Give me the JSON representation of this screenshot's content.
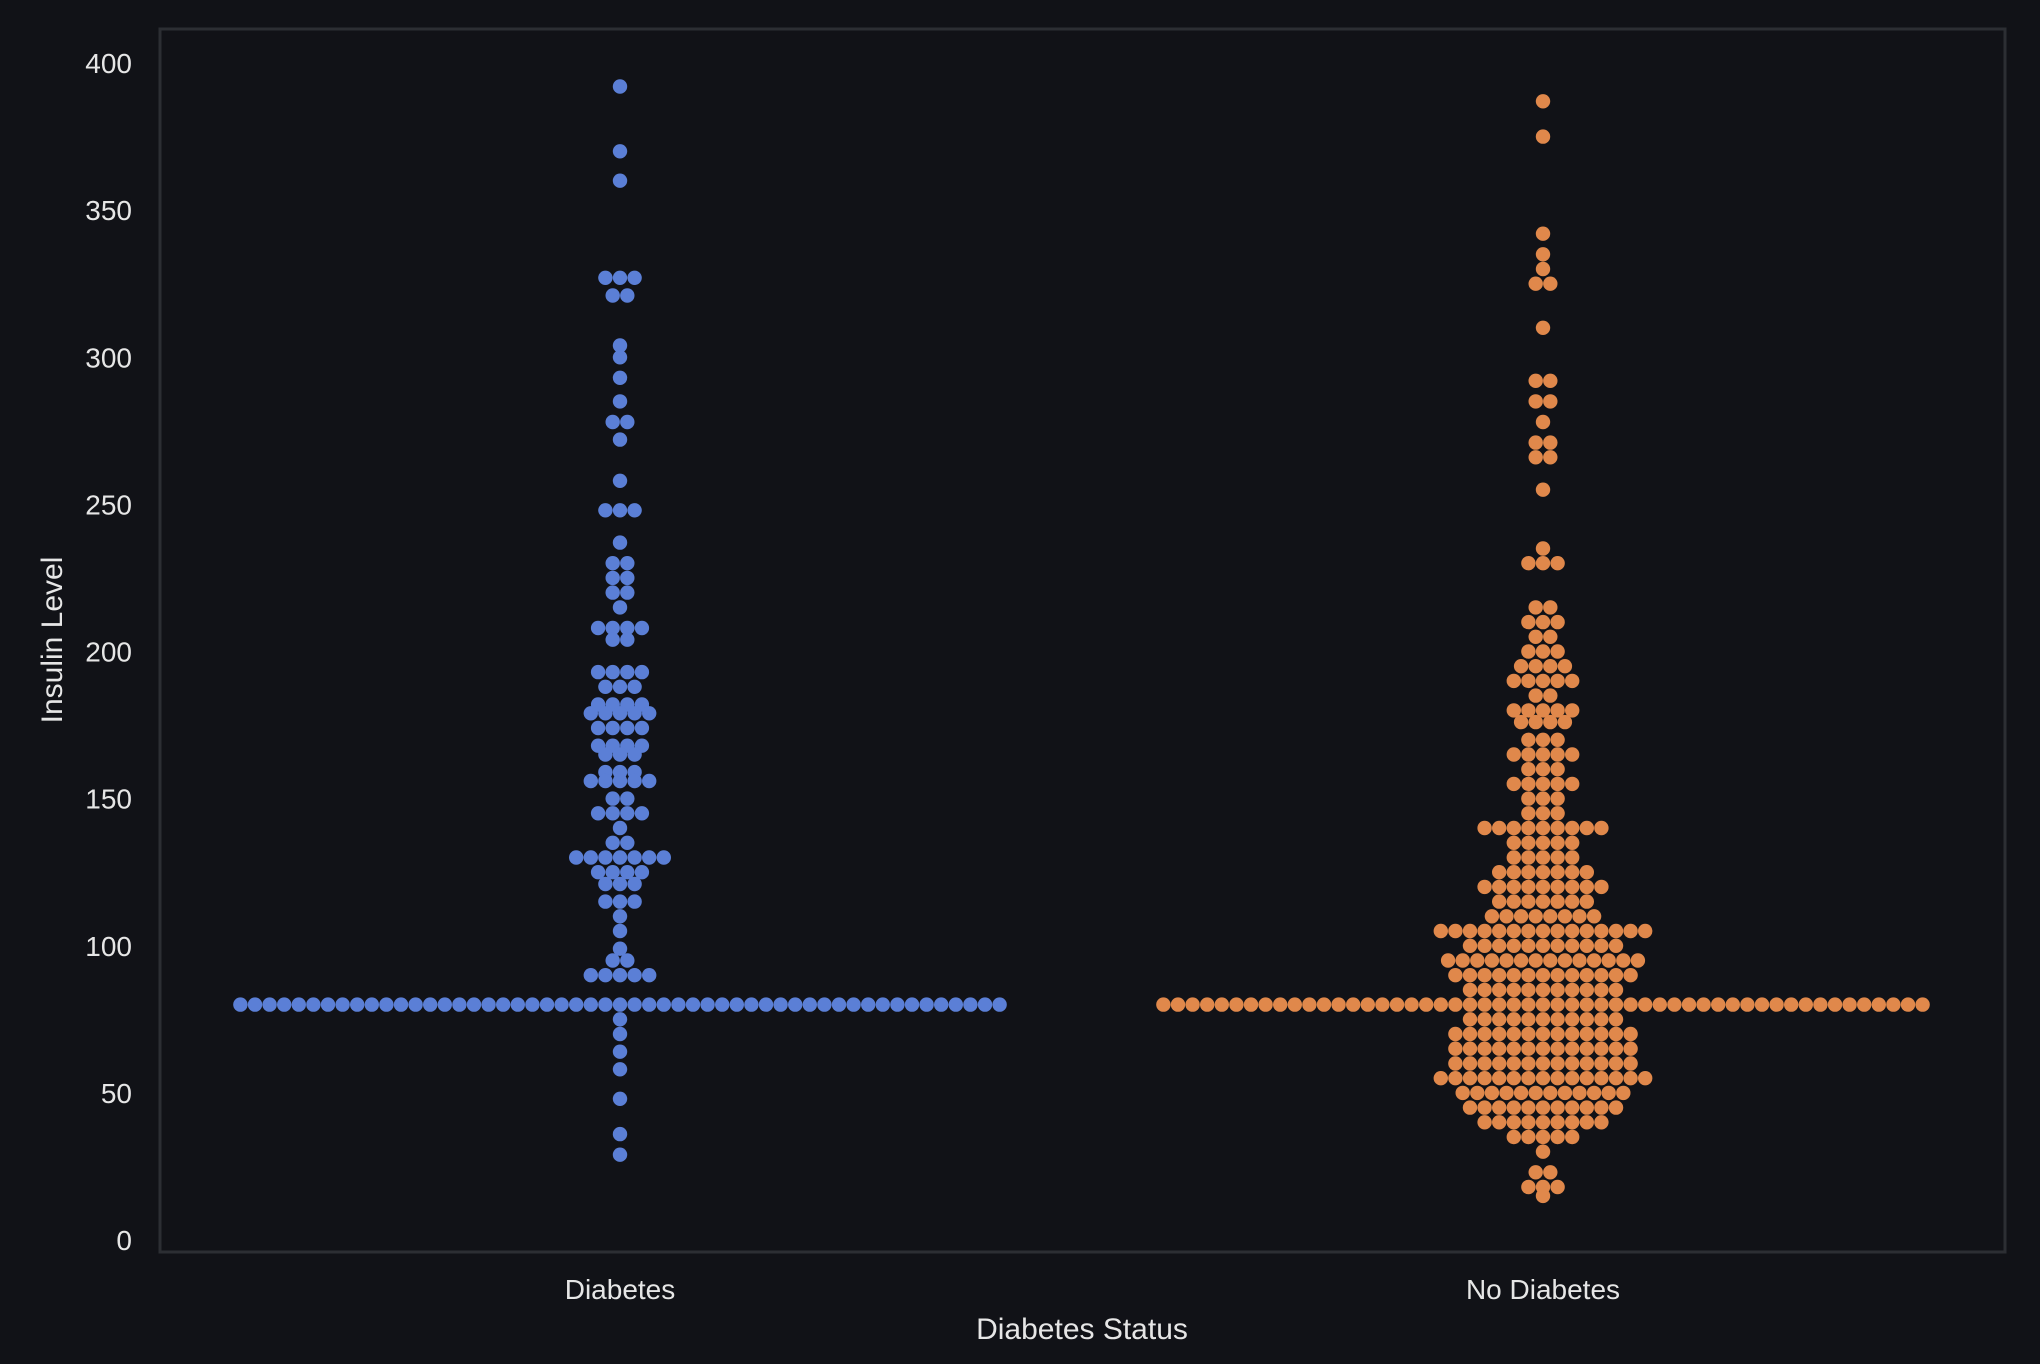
{
  "chart_data": {
    "type": "swarm",
    "title": "",
    "xlabel": "Diabetes Status",
    "ylabel": "Insulin Level",
    "ylim": [
      0,
      400
    ],
    "yticks": [
      0,
      50,
      100,
      150,
      200,
      250,
      300,
      350,
      400
    ],
    "categories": [
      "Diabetes",
      "No Diabetes"
    ],
    "grid": false,
    "legend": "none",
    "colors": {
      "background": "#111217",
      "plot_border": "#2c2e33",
      "text": "#e6e6e6"
    },
    "series": [
      {
        "category": "Diabetes",
        "color": "#5b7fd6",
        "groups": [
          {
            "y": 80,
            "n": 53
          },
          {
            "y": 392,
            "n": 1
          },
          {
            "y": 370,
            "n": 1
          },
          {
            "y": 360,
            "n": 1
          },
          {
            "y": 327,
            "n": 3
          },
          {
            "y": 321,
            "n": 2
          },
          {
            "y": 304,
            "n": 1
          },
          {
            "y": 300,
            "n": 1
          },
          {
            "y": 293,
            "n": 1
          },
          {
            "y": 285,
            "n": 1
          },
          {
            "y": 278,
            "n": 2
          },
          {
            "y": 272,
            "n": 1
          },
          {
            "y": 258,
            "n": 1
          },
          {
            "y": 248,
            "n": 3
          },
          {
            "y": 237,
            "n": 1
          },
          {
            "y": 230,
            "n": 2
          },
          {
            "y": 225,
            "n": 2
          },
          {
            "y": 220,
            "n": 2
          },
          {
            "y": 215,
            "n": 1
          },
          {
            "y": 208,
            "n": 4
          },
          {
            "y": 204,
            "n": 2
          },
          {
            "y": 193,
            "n": 4
          },
          {
            "y": 188,
            "n": 3
          },
          {
            "y": 182,
            "n": 4
          },
          {
            "y": 179,
            "n": 5
          },
          {
            "y": 174,
            "n": 4
          },
          {
            "y": 168,
            "n": 4
          },
          {
            "y": 165,
            "n": 3
          },
          {
            "y": 159,
            "n": 3
          },
          {
            "y": 156,
            "n": 5
          },
          {
            "y": 150,
            "n": 2
          },
          {
            "y": 145,
            "n": 4
          },
          {
            "y": 140,
            "n": 1
          },
          {
            "y": 135,
            "n": 2
          },
          {
            "y": 130,
            "n": 7
          },
          {
            "y": 125,
            "n": 4
          },
          {
            "y": 121,
            "n": 3
          },
          {
            "y": 115,
            "n": 3
          },
          {
            "y": 110,
            "n": 1
          },
          {
            "y": 105,
            "n": 1
          },
          {
            "y": 99,
            "n": 1
          },
          {
            "y": 95,
            "n": 2
          },
          {
            "y": 90,
            "n": 5
          },
          {
            "y": 75,
            "n": 1
          },
          {
            "y": 70,
            "n": 1
          },
          {
            "y": 64,
            "n": 1
          },
          {
            "y": 58,
            "n": 1
          },
          {
            "y": 48,
            "n": 1
          },
          {
            "y": 36,
            "n": 1
          },
          {
            "y": 29,
            "n": 1
          }
        ]
      },
      {
        "category": "No Diabetes",
        "color": "#e0884b",
        "groups": [
          {
            "y": 80,
            "n": 53
          },
          {
            "y": 387,
            "n": 1
          },
          {
            "y": 375,
            "n": 1
          },
          {
            "y": 342,
            "n": 1
          },
          {
            "y": 335,
            "n": 1
          },
          {
            "y": 330,
            "n": 1
          },
          {
            "y": 325,
            "n": 2
          },
          {
            "y": 310,
            "n": 1
          },
          {
            "y": 292,
            "n": 2
          },
          {
            "y": 285,
            "n": 2
          },
          {
            "y": 278,
            "n": 1
          },
          {
            "y": 271,
            "n": 2
          },
          {
            "y": 266,
            "n": 2
          },
          {
            "y": 255,
            "n": 1
          },
          {
            "y": 235,
            "n": 1
          },
          {
            "y": 230,
            "n": 3
          },
          {
            "y": 215,
            "n": 2
          },
          {
            "y": 210,
            "n": 3
          },
          {
            "y": 205,
            "n": 2
          },
          {
            "y": 200,
            "n": 3
          },
          {
            "y": 195,
            "n": 4
          },
          {
            "y": 190,
            "n": 5
          },
          {
            "y": 185,
            "n": 2
          },
          {
            "y": 180,
            "n": 5
          },
          {
            "y": 176,
            "n": 4
          },
          {
            "y": 170,
            "n": 3
          },
          {
            "y": 165,
            "n": 5
          },
          {
            "y": 160,
            "n": 3
          },
          {
            "y": 155,
            "n": 5
          },
          {
            "y": 150,
            "n": 3
          },
          {
            "y": 145,
            "n": 3
          },
          {
            "y": 140,
            "n": 9
          },
          {
            "y": 135,
            "n": 5
          },
          {
            "y": 130,
            "n": 5
          },
          {
            "y": 125,
            "n": 7
          },
          {
            "y": 120,
            "n": 9
          },
          {
            "y": 115,
            "n": 7
          },
          {
            "y": 110,
            "n": 8
          },
          {
            "y": 105,
            "n": 15
          },
          {
            "y": 100,
            "n": 11
          },
          {
            "y": 95,
            "n": 14
          },
          {
            "y": 90,
            "n": 13
          },
          {
            "y": 85,
            "n": 11
          },
          {
            "y": 75,
            "n": 11
          },
          {
            "y": 70,
            "n": 13
          },
          {
            "y": 65,
            "n": 13
          },
          {
            "y": 60,
            "n": 13
          },
          {
            "y": 55,
            "n": 15
          },
          {
            "y": 50,
            "n": 12
          },
          {
            "y": 45,
            "n": 11
          },
          {
            "y": 40,
            "n": 9
          },
          {
            "y": 35,
            "n": 5
          },
          {
            "y": 30,
            "n": 1
          },
          {
            "y": 23,
            "n": 2
          },
          {
            "y": 18,
            "n": 3
          },
          {
            "y": 15,
            "n": 1
          }
        ]
      }
    ]
  }
}
